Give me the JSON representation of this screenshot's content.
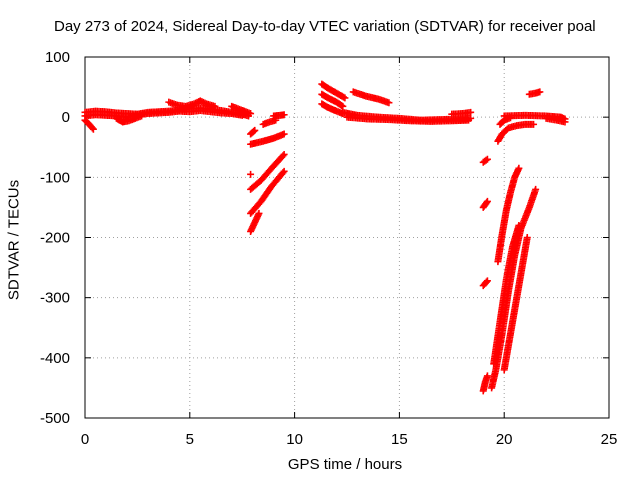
{
  "chart_data": {
    "type": "scatter",
    "title": "Day 273 of 2024, Sidereal Day-to-day VTEC variation (SDTVAR) for receiver poal",
    "xlabel": "GPS time / hours",
    "ylabel": "SDTVAR / TECUs",
    "xlim": [
      0,
      25
    ],
    "ylim": [
      -500,
      100
    ],
    "xticks": [
      0,
      5,
      10,
      15,
      20,
      25
    ],
    "yticks": [
      100,
      0,
      -100,
      -200,
      -300,
      -400,
      -500
    ],
    "grid": true,
    "marker": "+",
    "color": "#ff0000",
    "series": [
      {
        "segments": [
          [
            [
              0.0,
              8
            ],
            [
              0.5,
              10
            ],
            [
              1.0,
              9
            ],
            [
              1.5,
              7
            ],
            [
              2.0,
              6
            ],
            [
              2.5,
              5
            ],
            [
              3.0,
              8
            ],
            [
              3.5,
              9
            ],
            [
              4.0,
              10
            ],
            [
              4.5,
              12
            ],
            [
              5.0,
              14
            ],
            [
              5.5,
              15
            ],
            [
              6.0,
              13
            ],
            [
              6.5,
              11
            ],
            [
              7.0,
              8
            ],
            [
              7.5,
              5
            ],
            [
              7.8,
              2
            ]
          ],
          [
            [
              0.0,
              2
            ],
            [
              0.5,
              4
            ],
            [
              1.0,
              3
            ],
            [
              1.5,
              2
            ],
            [
              2.0,
              0
            ],
            [
              2.5,
              4
            ],
            [
              3.0,
              6
            ],
            [
              3.5,
              7
            ],
            [
              4.0,
              8
            ],
            [
              4.5,
              10
            ],
            [
              5.0,
              9
            ],
            [
              5.5,
              11
            ],
            [
              6.0,
              9
            ],
            [
              6.5,
              7
            ],
            [
              7.0,
              6
            ],
            [
              7.5,
              3
            ]
          ],
          [
            [
              0.0,
              -5
            ],
            [
              0.2,
              -12
            ],
            [
              0.4,
              -20
            ]
          ],
          [
            [
              1.5,
              -2
            ],
            [
              1.8,
              -8
            ],
            [
              2.1,
              -6
            ],
            [
              2.4,
              -2
            ],
            [
              2.7,
              2
            ]
          ],
          [
            [
              4.0,
              25
            ],
            [
              4.4,
              20
            ],
            [
              4.8,
              18
            ],
            [
              5.2,
              22
            ],
            [
              5.5,
              27
            ],
            [
              5.8,
              22
            ],
            [
              6.2,
              18
            ]
          ],
          [
            [
              7.0,
              18
            ],
            [
              7.3,
              14
            ],
            [
              7.6,
              10
            ],
            [
              7.9,
              6
            ]
          ],
          [
            [
              7.9,
              -28
            ],
            [
              8.1,
              -22
            ]
          ],
          [
            [
              7.9,
              -45
            ],
            [
              8.5,
              -40
            ],
            [
              9.0,
              -35
            ],
            [
              9.5,
              -28
            ]
          ],
          [
            [
              7.9,
              -95
            ]
          ],
          [
            [
              7.9,
              -120
            ],
            [
              8.4,
              -105
            ],
            [
              8.9,
              -85
            ],
            [
              9.5,
              -62
            ]
          ],
          [
            [
              7.9,
              -160
            ],
            [
              8.4,
              -140
            ],
            [
              8.9,
              -115
            ],
            [
              9.5,
              -90
            ]
          ],
          [
            [
              7.9,
              -190
            ],
            [
              8.1,
              -175
            ],
            [
              8.3,
              -160
            ]
          ],
          [
            [
              8.5,
              -12
            ],
            [
              8.8,
              -8
            ],
            [
              9.1,
              -5
            ]
          ],
          [
            [
              9.0,
              2
            ],
            [
              9.3,
              3
            ],
            [
              9.5,
              4
            ]
          ],
          [
            [
              11.3,
              55
            ],
            [
              11.6,
              48
            ],
            [
              12.0,
              40
            ],
            [
              12.4,
              32
            ]
          ],
          [
            [
              11.3,
              38
            ],
            [
              11.6,
              32
            ],
            [
              12.0,
              25
            ],
            [
              12.3,
              18
            ]
          ],
          [
            [
              11.3,
              22
            ],
            [
              11.6,
              16
            ],
            [
              12.0,
              10
            ],
            [
              12.3,
              6
            ]
          ],
          [
            [
              12.3,
              8
            ],
            [
              13.0,
              3
            ],
            [
              14.0,
              0
            ],
            [
              15.0,
              -2
            ],
            [
              16.0,
              -5
            ],
            [
              17.0,
              -4
            ],
            [
              18.0,
              -3
            ],
            [
              18.4,
              -2
            ]
          ],
          [
            [
              12.5,
              0
            ],
            [
              13.5,
              -3
            ],
            [
              14.5,
              -4
            ],
            [
              15.5,
              -6
            ],
            [
              16.5,
              -7
            ],
            [
              17.5,
              -6
            ],
            [
              18.3,
              -5
            ]
          ],
          [
            [
              12.8,
              42
            ],
            [
              13.4,
              35
            ],
            [
              14.0,
              30
            ],
            [
              14.5,
              24
            ]
          ],
          [
            [
              17.5,
              5
            ],
            [
              18.0,
              6
            ],
            [
              18.4,
              8
            ]
          ],
          [
            [
              19.0,
              -75
            ],
            [
              19.2,
              -70
            ]
          ],
          [
            [
              19.0,
              -150
            ],
            [
              19.2,
              -140
            ]
          ],
          [
            [
              19.0,
              -280
            ],
            [
              19.2,
              -272
            ]
          ],
          [
            [
              19.0,
              -455
            ],
            [
              19.1,
              -440
            ],
            [
              19.2,
              -430
            ]
          ],
          [
            [
              19.4,
              -450
            ],
            [
              19.6,
              -420
            ],
            [
              19.9,
              -360
            ],
            [
              20.2,
              -290
            ],
            [
              20.5,
              -230
            ],
            [
              20.8,
              -185
            ],
            [
              21.2,
              -150
            ],
            [
              21.5,
              -120
            ]
          ],
          [
            [
              19.7,
              -240
            ],
            [
              19.9,
              -195
            ],
            [
              20.1,
              -155
            ],
            [
              20.3,
              -125
            ],
            [
              20.5,
              -100
            ],
            [
              20.7,
              -85
            ]
          ],
          [
            [
              19.5,
              -410
            ],
            [
              19.8,
              -340
            ],
            [
              20.1,
              -270
            ],
            [
              20.4,
              -215
            ],
            [
              20.7,
              -180
            ]
          ],
          [
            [
              20.0,
              -420
            ],
            [
              20.2,
              -380
            ],
            [
              20.5,
              -320
            ],
            [
              20.8,
              -260
            ],
            [
              21.1,
              -200
            ]
          ],
          [
            [
              19.7,
              -40
            ],
            [
              19.9,
              -28
            ],
            [
              20.2,
              -18
            ],
            [
              20.6,
              -14
            ],
            [
              21.0,
              -12
            ],
            [
              21.4,
              -12
            ]
          ],
          [
            [
              19.8,
              -12
            ],
            [
              20.0,
              -5
            ],
            [
              20.3,
              -1
            ]
          ],
          [
            [
              20.0,
              2
            ],
            [
              21.0,
              3
            ],
            [
              22.0,
              2
            ],
            [
              22.7,
              0
            ],
            [
              22.9,
              -3
            ]
          ],
          [
            [
              21.2,
              38
            ],
            [
              21.5,
              40
            ],
            [
              21.7,
              42
            ]
          ],
          [
            [
              22.0,
              -2
            ],
            [
              22.5,
              -5
            ],
            [
              22.9,
              -8
            ]
          ]
        ]
      }
    ]
  }
}
